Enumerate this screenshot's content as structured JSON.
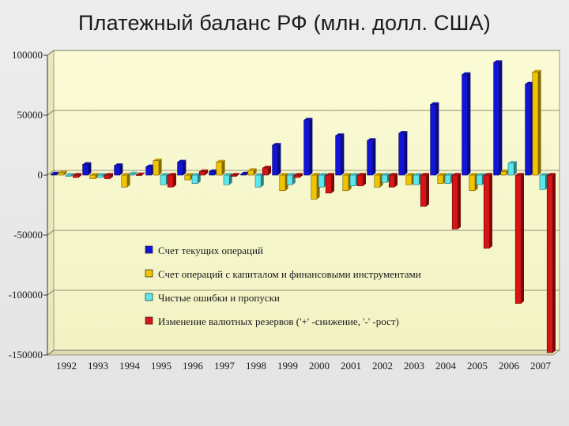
{
  "title": "Платежный баланс РФ (млн. долл. США)",
  "chart_data": {
    "type": "bar",
    "title": "Платежный баланс РФ (млн. долл. США)",
    "xlabel": "",
    "ylabel": "",
    "ylim": [
      -150000,
      100000
    ],
    "yticks": [
      100000,
      50000,
      0,
      -50000,
      -100000,
      -150000
    ],
    "ytick_labels": [
      "100000",
      "50000",
      "0",
      "-50000",
      "-100000",
      "-150000"
    ],
    "categories": [
      "1992",
      "1993",
      "1994",
      "1995",
      "1996",
      "1997",
      "1998",
      "1999",
      "2000",
      "2001",
      "2002",
      "2003",
      "2004",
      "2005",
      "2006",
      "2007"
    ],
    "legend_position": "center",
    "grid": true,
    "series": [
      {
        "name": "Счет текущих операций",
        "color": "#1414d8",
        "values": [
          1000,
          9000,
          8000,
          7000,
          11000,
          3000,
          1000,
          25000,
          46000,
          33000,
          29000,
          35000,
          59000,
          84000,
          94000,
          76000
        ]
      },
      {
        "name": "Счет операций с капиталом и финансовыми инструментами",
        "color": "#f2c400",
        "values": [
          2000,
          -3000,
          -10000,
          12000,
          -4000,
          11000,
          4000,
          -13000,
          -20000,
          -13000,
          -10000,
          -8000,
          -7000,
          -13000,
          3000,
          86000
        ]
      },
      {
        "name": "Чистые ошибки и пропуски",
        "color": "#5be8ec",
        "values": [
          -1000,
          -2000,
          1000,
          -8000,
          -7000,
          -8000,
          -10000,
          -8000,
          -10000,
          -9000,
          -6000,
          -8000,
          -7000,
          -8000,
          10000,
          -12000
        ]
      },
      {
        "name": "Изменение валютных резервов ('+' -снижение, '-' -рост)",
        "color": "#d81414",
        "values": [
          -2000,
          -3000,
          0,
          -10000,
          3000,
          -1000,
          6000,
          -2000,
          -15000,
          -9000,
          -10000,
          -26000,
          -45000,
          -61000,
          -107000,
          -148000
        ]
      }
    ]
  }
}
